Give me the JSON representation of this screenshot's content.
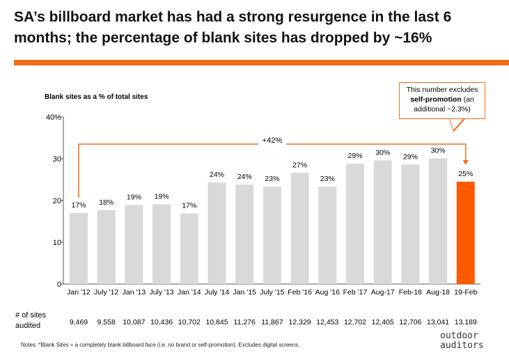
{
  "title": "SA’s billboard market has had a strong resurgence in the last 6 months; the percentage of blank sites has dropped by ~16%",
  "colors": {
    "accent": "#f26b16",
    "bar": "#d9d9d9",
    "highlight": "#ff5a00"
  },
  "callout": {
    "line1": "This number excludes",
    "line2_bold": "self-promotion",
    "line2_rest": " (an",
    "line3": "additional ~2.3%)"
  },
  "audited": {
    "label_line1": "# of sites",
    "label_line2": "audited"
  },
  "notes": "Notes: *Blank Sites = a completely blank billboard face (i.e. no brand or self-promotion). Excludes digital screens.",
  "logo": {
    "line1": "outdoor",
    "line2": "auditors"
  },
  "chart_data": {
    "type": "bar",
    "title": "Blank sites as a % of total sites",
    "categories": [
      "Jan '12",
      "July '12",
      "Jan '13",
      "July '13",
      "Jan '14",
      "July '14",
      "Jan '15",
      "July '15",
      "Feb '16",
      "Aug '16",
      "Feb '17",
      "Aug-17",
      "Feb-18",
      "Aug-18",
      "19-Feb"
    ],
    "values": [
      17,
      17.7,
      18.9,
      19.1,
      16.9,
      24.3,
      23.8,
      23.3,
      26.6,
      23.3,
      28.8,
      29.6,
      28.6,
      30.1,
      24.5
    ],
    "data_labels": [
      "17%",
      "18%",
      "19%",
      "19%",
      "17%",
      "24%",
      "24%",
      "23%",
      "27%",
      "23%",
      "29%",
      "30%",
      "29%",
      "30%",
      "25%"
    ],
    "sites_audited": [
      "9,469",
      "9,558",
      "10,087",
      "10,436",
      "10,702",
      "10,845",
      "11,276",
      "11,867",
      "12,329",
      "12,453",
      "12,702",
      "12,405",
      "12,706",
      "13,041",
      "13,189"
    ],
    "highlight_index": 14,
    "yticks": [
      "0",
      "10",
      "20",
      "30",
      "40%"
    ],
    "ylim": [
      0,
      40
    ],
    "change_annotation": "+42%",
    "grid": false
  }
}
